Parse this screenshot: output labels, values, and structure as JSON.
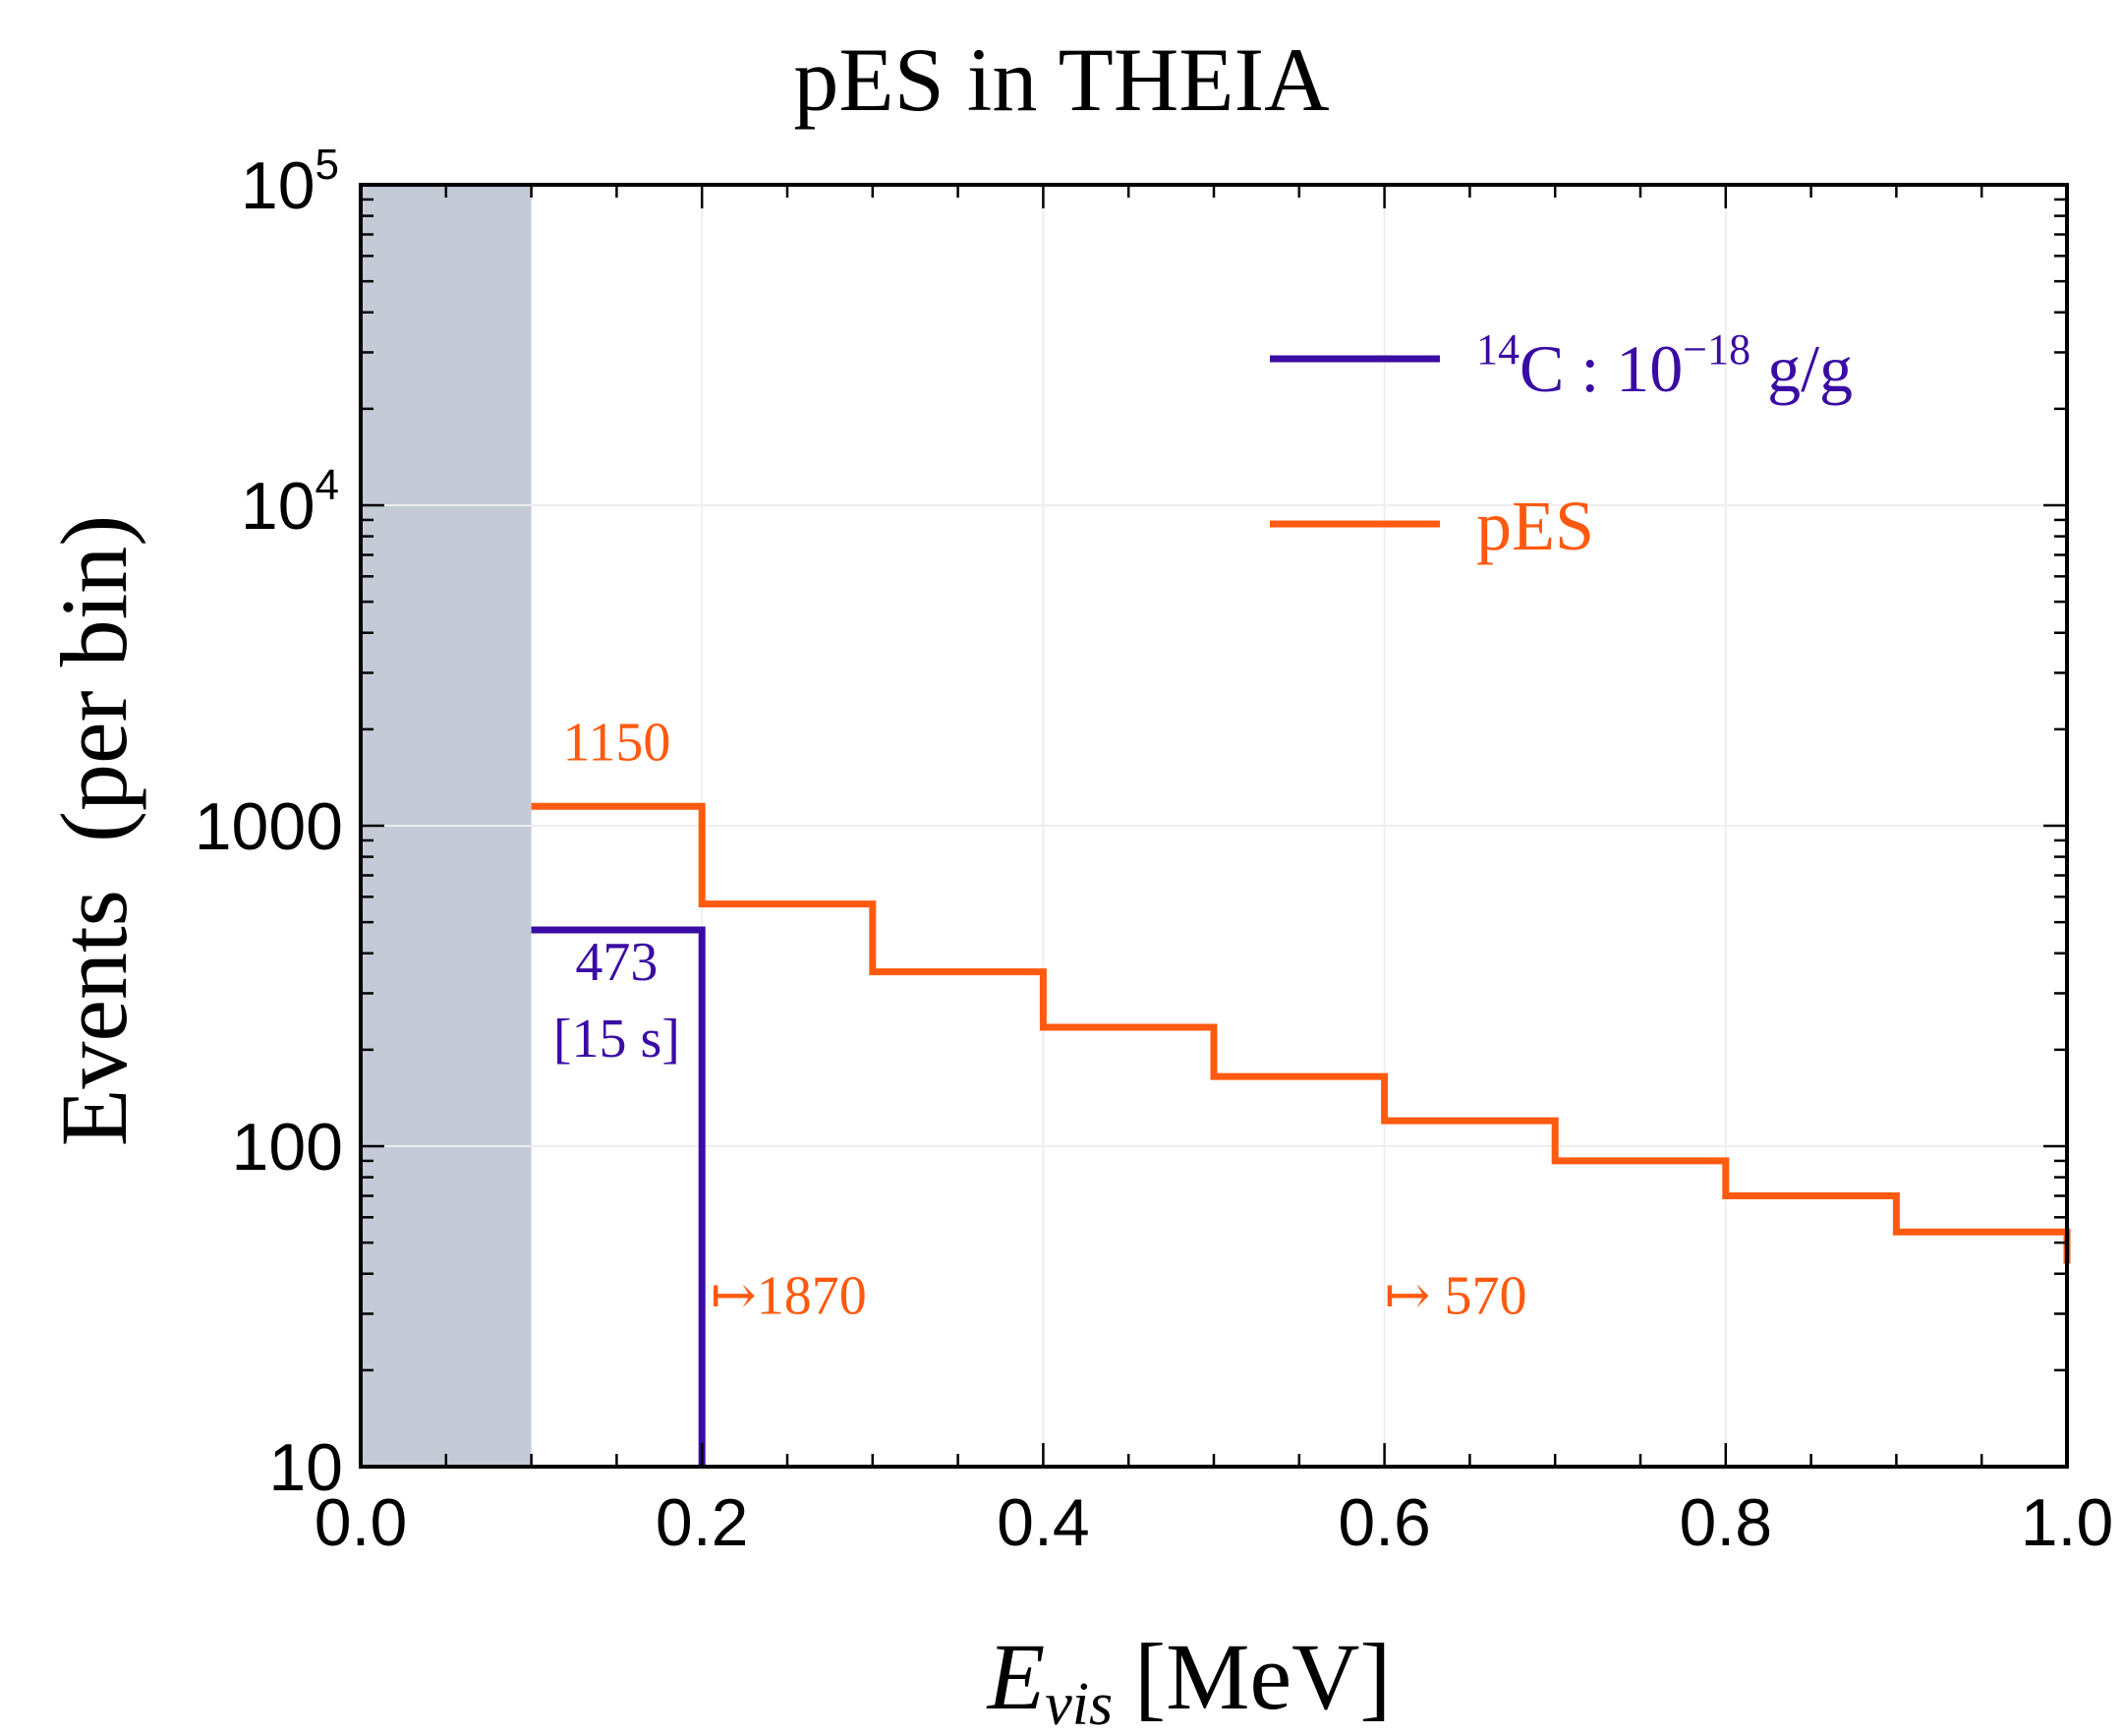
{
  "chart_data": {
    "type": "line",
    "title": "pES in THEIA",
    "xlabel": {
      "main": "E",
      "sub": "vis",
      "unit": "[MeV]"
    },
    "ylabel": "Events  (per bin)",
    "xlim": [
      0.0,
      1.0
    ],
    "ylim": [
      10,
      100000
    ],
    "yscale": "log",
    "x_ticks": [
      {
        "value": 0.0,
        "label": "0.0"
      },
      {
        "value": 0.2,
        "label": "0.2"
      },
      {
        "value": 0.4,
        "label": "0.4"
      },
      {
        "value": 0.6,
        "label": "0.6"
      },
      {
        "value": 0.8,
        "label": "0.8"
      },
      {
        "value": 1.0,
        "label": "1.0"
      }
    ],
    "y_ticks": [
      {
        "value": 10,
        "label": "10",
        "exp": ""
      },
      {
        "value": 100,
        "label": "100",
        "exp": ""
      },
      {
        "value": 1000,
        "label": "1000",
        "exp": ""
      },
      {
        "value": 10000,
        "label": "10",
        "exp": "4"
      },
      {
        "value": 100000,
        "label": "10",
        "exp": "5"
      }
    ],
    "grid": true,
    "shaded_region": {
      "x_from": 0.0,
      "x_to": 0.1,
      "color": "#c5cbd6"
    },
    "series": [
      {
        "name": "14C",
        "legend": {
          "sup1": "14",
          "base": "C : 10",
          "sup2": "−18",
          "tail": " g/g"
        },
        "color": "#3a0ca3",
        "bins": [
          {
            "x0": 0.1,
            "x1": 0.2,
            "y": 473
          }
        ],
        "drop_to_axis": true
      },
      {
        "name": "pES",
        "legend": {
          "text": "pES"
        },
        "color": "#ff5a0f",
        "bins": [
          {
            "x0": 0.1,
            "x1": 0.2,
            "y": 1150
          },
          {
            "x0": 0.2,
            "x1": 0.3,
            "y": 570
          },
          {
            "x0": 0.3,
            "x1": 0.4,
            "y": 350
          },
          {
            "x0": 0.4,
            "x1": 0.5,
            "y": 235
          },
          {
            "x0": 0.5,
            "x1": 0.6,
            "y": 165
          },
          {
            "x0": 0.6,
            "x1": 0.7,
            "y": 120
          },
          {
            "x0": 0.7,
            "x1": 0.8,
            "y": 90
          },
          {
            "x0": 0.8,
            "x1": 0.9,
            "y": 70
          },
          {
            "x0": 0.9,
            "x1": 1.0,
            "y": 54
          }
        ],
        "tail_to": 43
      }
    ],
    "annotations": [
      {
        "id": "pes-first-bin",
        "text": "1150",
        "x": 0.15,
        "y": 1600,
        "color": "#ff5a0f"
      },
      {
        "id": "c14-count",
        "text": "473",
        "x": 0.15,
        "y": 330,
        "color": "#3a0ca3"
      },
      {
        "id": "c14-time",
        "text": "[15 s]",
        "x": 0.15,
        "y": 190,
        "color": "#3a0ca3"
      },
      {
        "id": "pes-total-02",
        "text": "↦1870",
        "x": 0.205,
        "y": 30,
        "color": "#ff5a0f"
      },
      {
        "id": "pes-total-06",
        "text": "↦ 570",
        "x": 0.6,
        "y": 30,
        "color": "#ff5a0f"
      }
    ]
  }
}
